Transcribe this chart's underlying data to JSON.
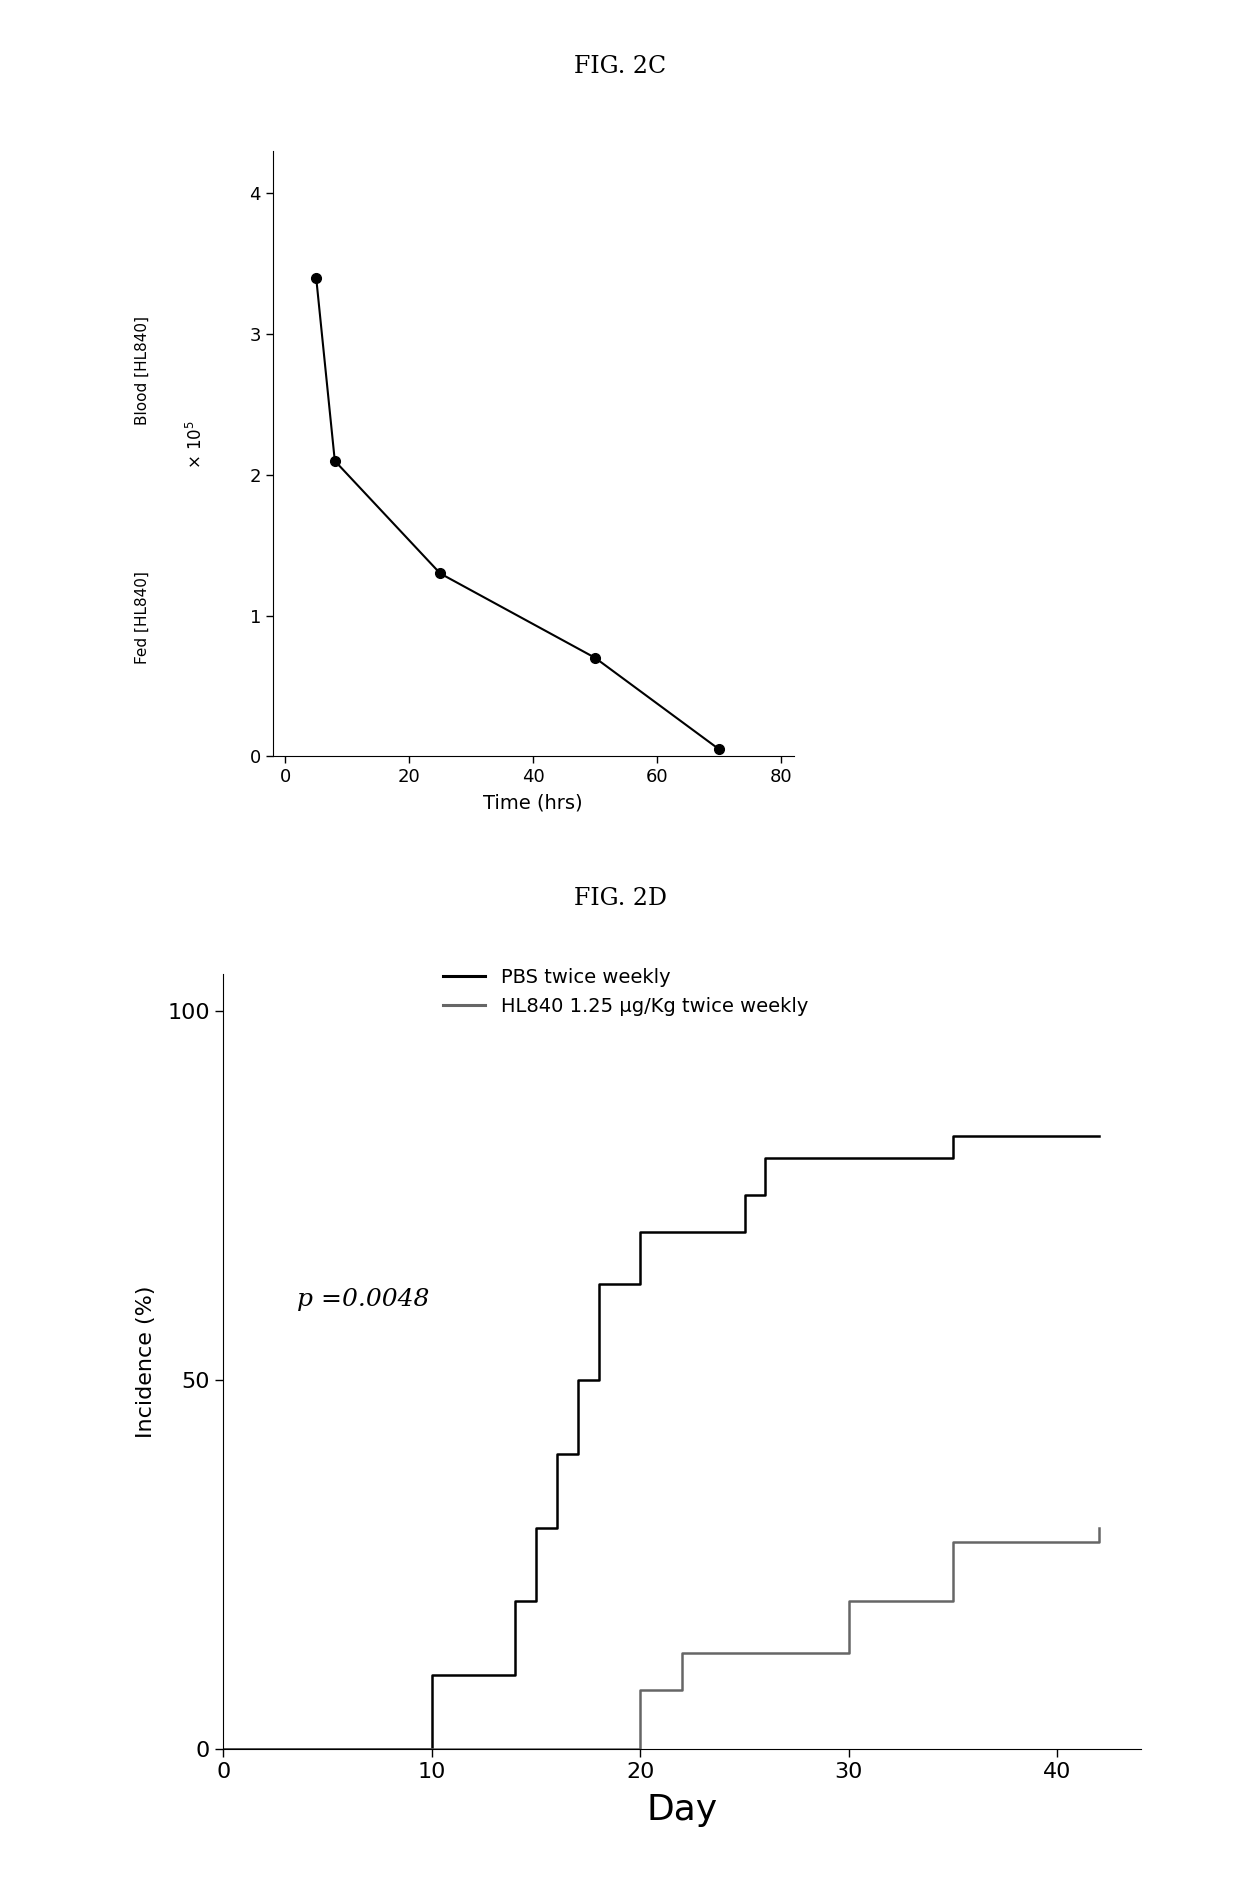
{
  "fig2c_title": "FIG. 2C",
  "fig2d_title": "FIG. 2D",
  "fig2c": {
    "x": [
      5,
      8,
      25,
      50,
      70
    ],
    "y": [
      3.4,
      2.1,
      1.3,
      0.7,
      0.05
    ],
    "xlabel": "Time (hrs)",
    "xlim": [
      -2,
      82
    ],
    "ylim": [
      0,
      4.3
    ],
    "xticks": [
      0,
      20,
      40,
      60,
      80
    ],
    "yticks": [
      0,
      1,
      2,
      3,
      4
    ],
    "line_color": "#000000",
    "marker": "o",
    "markersize": 7,
    "linewidth": 1.5
  },
  "fig2d": {
    "pbs_x": [
      0,
      10,
      10,
      14,
      14,
      15,
      15,
      16,
      16,
      17,
      17,
      18,
      18,
      20,
      20,
      25,
      25,
      26,
      26,
      35,
      35,
      42,
      42
    ],
    "pbs_y": [
      0,
      0,
      10,
      10,
      20,
      20,
      30,
      30,
      40,
      40,
      50,
      50,
      63,
      63,
      70,
      70,
      75,
      75,
      80,
      80,
      83,
      83,
      83
    ],
    "hl840_x": [
      0,
      20,
      20,
      22,
      22,
      30,
      30,
      35,
      35,
      42,
      42
    ],
    "hl840_y": [
      0,
      0,
      8,
      8,
      13,
      13,
      20,
      20,
      28,
      28,
      30
    ],
    "xlabel": "Day",
    "ylabel": "Incidence (%)",
    "xlim": [
      0,
      44
    ],
    "ylim": [
      0,
      105
    ],
    "xticks": [
      0,
      10,
      20,
      30,
      40
    ],
    "yticks": [
      0,
      50,
      100
    ],
    "pbs_color": "#000000",
    "hl840_color": "#666666",
    "pbs_label": "PBS twice weekly",
    "hl840_label": "HL840 1.25 μg/Kg twice weekly",
    "pvalue_text": "p =0.0048",
    "linewidth": 1.8
  },
  "background_color": "#ffffff"
}
